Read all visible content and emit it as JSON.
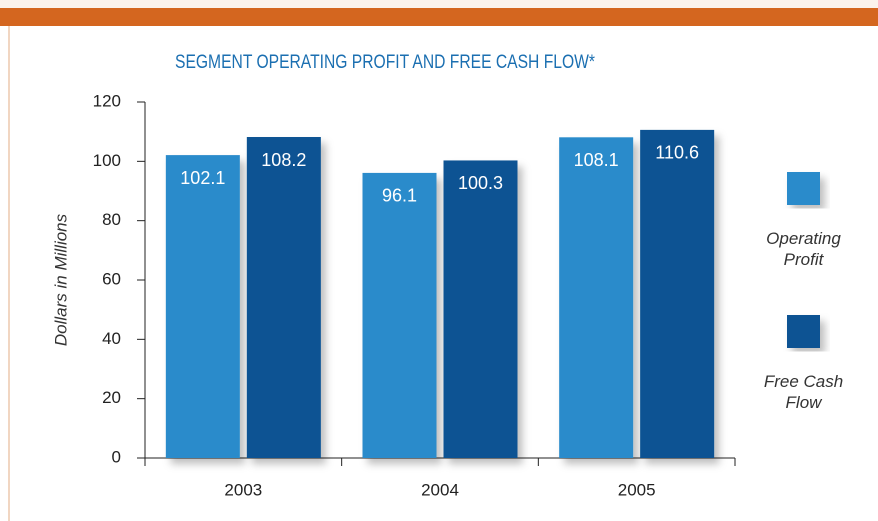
{
  "chart_data": {
    "type": "bar",
    "title": "SEGMENT OPERATING PROFIT AND FREE CASH FLOW*",
    "y_label": "Dollars in Millions",
    "categories": [
      "2003",
      "2004",
      "2005"
    ],
    "series": [
      {
        "name": "Operating Profit",
        "color": "#2a8bcb",
        "values": [
          102.1,
          96.1,
          108.1
        ]
      },
      {
        "name": "Free Cash Flow",
        "color": "#0a5393",
        "values": [
          108.2,
          100.3,
          110.6
        ]
      }
    ],
    "ylim": [
      0,
      120
    ],
    "yticks": [
      0,
      20,
      40,
      60,
      80,
      100,
      120
    ],
    "grid": false,
    "legend": "right"
  }
}
